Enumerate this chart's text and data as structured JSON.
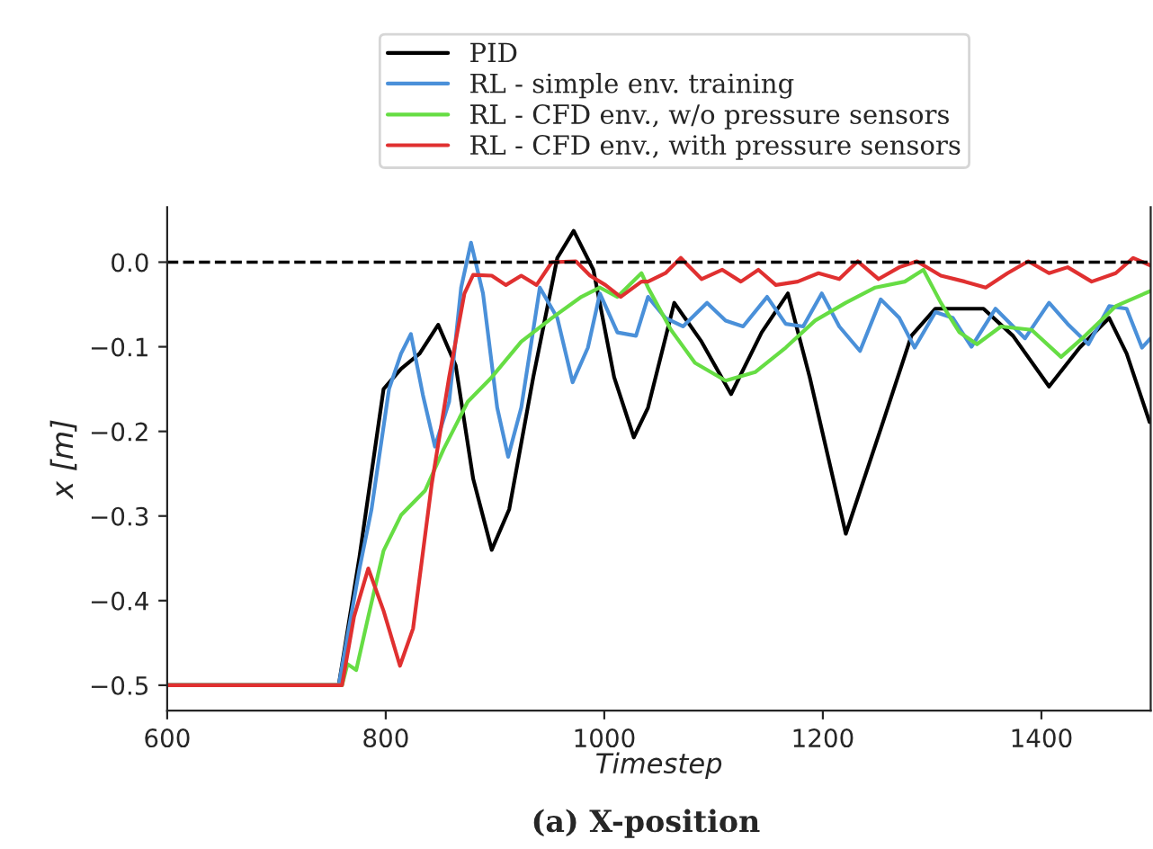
{
  "chart_data": {
    "type": "line",
    "xlabel": "Timestep",
    "ylabel": "x [m]",
    "annotations": [
      "(a) X-position"
    ],
    "xlim": [
      600,
      1500
    ],
    "xticks": [
      600,
      800,
      1000,
      1200,
      1400
    ],
    "ylim": [
      -0.53,
      0.065
    ],
    "yticks": [
      {
        "value": -0.5,
        "label": "−0.5"
      },
      {
        "value": -0.4,
        "label": "−0.4"
      },
      {
        "value": -0.3,
        "label": "−0.3"
      },
      {
        "value": -0.2,
        "label": "−0.2"
      },
      {
        "value": -0.1,
        "label": "−0.1"
      },
      {
        "value": 0.0,
        "label": "0.0"
      }
    ],
    "grid": false,
    "legend": "top",
    "marker": "none",
    "line_style": "solid",
    "ref_lines": [
      {
        "axis": "y",
        "value": 0.0,
        "color": "#000000",
        "line_style": "dashed"
      }
    ],
    "series": [
      {
        "name": "PID",
        "color": "#000000",
        "x": [
          600,
          757,
          776,
          798,
          814,
          831,
          848,
          864,
          880,
          897,
          913,
          935,
          957,
          972,
          990,
          1009,
          1027,
          1040,
          1064,
          1089,
          1116,
          1144,
          1168,
          1188,
          1221,
          1254,
          1281,
          1303,
          1347,
          1374,
          1407,
          1435,
          1462,
          1478,
          1499
        ],
        "values": [
          -0.5,
          -0.5,
          -0.348,
          -0.15,
          -0.126,
          -0.108,
          -0.074,
          -0.122,
          -0.256,
          -0.34,
          -0.292,
          -0.136,
          0.005,
          0.037,
          -0.009,
          -0.136,
          -0.207,
          -0.172,
          -0.048,
          -0.094,
          -0.156,
          -0.083,
          -0.037,
          -0.136,
          -0.321,
          -0.193,
          -0.087,
          -0.055,
          -0.055,
          -0.087,
          -0.147,
          -0.101,
          -0.066,
          -0.108,
          -0.189
        ]
      },
      {
        "name": "RL - simple env. training",
        "color": "#4a90d9",
        "x": [
          600,
          757,
          776,
          787,
          803,
          814,
          823,
          834,
          845,
          858,
          869,
          878,
          889,
          902,
          912,
          924,
          941,
          957,
          971,
          985,
          996,
          1012,
          1029,
          1040,
          1056,
          1072,
          1094,
          1111,
          1127,
          1149,
          1166,
          1182,
          1199,
          1215,
          1234,
          1253,
          1270,
          1284,
          1303,
          1319,
          1336,
          1358,
          1385,
          1407,
          1424,
          1443,
          1462,
          1478,
          1492,
          1500
        ],
        "values": [
          -0.5,
          -0.5,
          -0.362,
          -0.292,
          -0.15,
          -0.108,
          -0.085,
          -0.157,
          -0.218,
          -0.165,
          -0.03,
          0.023,
          -0.037,
          -0.172,
          -0.23,
          -0.172,
          -0.03,
          -0.066,
          -0.142,
          -0.101,
          -0.037,
          -0.083,
          -0.087,
          -0.041,
          -0.066,
          -0.076,
          -0.048,
          -0.069,
          -0.076,
          -0.041,
          -0.073,
          -0.076,
          -0.037,
          -0.076,
          -0.105,
          -0.044,
          -0.066,
          -0.101,
          -0.059,
          -0.066,
          -0.1,
          -0.055,
          -0.09,
          -0.048,
          -0.073,
          -0.097,
          -0.052,
          -0.055,
          -0.101,
          -0.09
        ]
      },
      {
        "name": "RL - CFD env., w/o pressure sensors",
        "color": "#66dd44",
        "x": [
          600,
          760,
          765,
          773,
          784,
          798,
          814,
          836,
          853,
          875,
          897,
          924,
          952,
          979,
          996,
          1012,
          1034,
          1040,
          1061,
          1083,
          1111,
          1138,
          1166,
          1193,
          1221,
          1248,
          1275,
          1292,
          1308,
          1325,
          1341,
          1363,
          1391,
          1418,
          1440,
          1468,
          1500
        ],
        "values": [
          -0.5,
          -0.5,
          -0.475,
          -0.482,
          -0.419,
          -0.341,
          -0.299,
          -0.27,
          -0.221,
          -0.165,
          -0.136,
          -0.094,
          -0.066,
          -0.041,
          -0.03,
          -0.041,
          -0.013,
          -0.03,
          -0.08,
          -0.119,
          -0.14,
          -0.13,
          -0.101,
          -0.069,
          -0.048,
          -0.03,
          -0.023,
          -0.009,
          -0.048,
          -0.083,
          -0.097,
          -0.076,
          -0.08,
          -0.112,
          -0.087,
          -0.052,
          -0.034
        ]
      },
      {
        "name": "RL - CFD env., with pressure sensors",
        "color": "#e03030",
        "x": [
          600,
          760,
          771,
          784,
          798,
          813,
          825,
          842,
          858,
          872,
          880,
          897,
          910,
          924,
          938,
          952,
          974,
          987,
          1001,
          1015,
          1034,
          1040,
          1056,
          1070,
          1089,
          1108,
          1125,
          1141,
          1157,
          1177,
          1196,
          1215,
          1232,
          1251,
          1270,
          1286,
          1308,
          1330,
          1349,
          1369,
          1388,
          1407,
          1424,
          1446,
          1468,
          1484,
          1500
        ],
        "values": [
          -0.5,
          -0.5,
          -0.419,
          -0.362,
          -0.412,
          -0.477,
          -0.433,
          -0.263,
          -0.136,
          -0.037,
          -0.015,
          -0.016,
          -0.027,
          -0.016,
          -0.027,
          0.0,
          0.001,
          -0.016,
          -0.027,
          -0.041,
          -0.023,
          -0.023,
          -0.013,
          0.005,
          -0.02,
          -0.009,
          -0.023,
          -0.009,
          -0.027,
          -0.023,
          -0.013,
          -0.02,
          0.001,
          -0.02,
          -0.006,
          0.001,
          -0.016,
          -0.023,
          -0.03,
          -0.013,
          0.001,
          -0.013,
          -0.006,
          -0.023,
          -0.013,
          0.005,
          -0.004
        ]
      }
    ]
  }
}
